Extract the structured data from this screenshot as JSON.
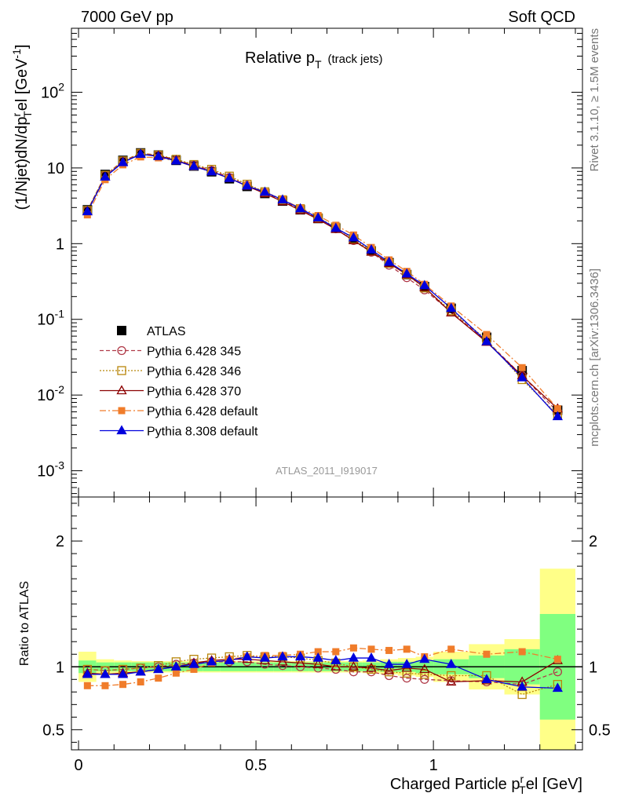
{
  "header": {
    "left": "7000 GeV pp",
    "right": "Soft QCD"
  },
  "side_text": {
    "rivet": "Rivet 3.1.10, ≥ 1.5M events",
    "mcplots": "mcplots.cern.ch [arXiv:1306.3436]"
  },
  "chart_data": {
    "type": "scatter",
    "title": "Relative p",
    "title_sub": "T",
    "title_suffix": "(track jets)",
    "analysis_id": "ATLAS_2011_I919017",
    "ylabel": "(1/Njet)dN/dp",
    "ylabel_sup": "r",
    "ylabel_sub": "T",
    "ylabel_tail": "el [GeV",
    "ylabel_unit_sup": "-1",
    "ylabel_close": "]",
    "ratio_ylabel": "Ratio to ATLAS",
    "xlabel": "Charged Particle p",
    "xlabel_sup": "r",
    "xlabel_sub": "T",
    "xlabel_tail": "el [GeV]",
    "xlim": [
      -0.02,
      1.42
    ],
    "ylim": [
      0.00045,
      700
    ],
    "ratio_ylim": [
      0.34,
      2.35
    ],
    "x_ticks": [
      {
        "v": 0,
        "label": "0"
      },
      {
        "v": 0.5,
        "label": "0.5"
      },
      {
        "v": 1,
        "label": "1"
      }
    ],
    "y_ticks": [
      {
        "v": 0.001,
        "base": "10",
        "exp": "-3"
      },
      {
        "v": 0.01,
        "base": "10",
        "exp": "-2"
      },
      {
        "v": 0.1,
        "base": "10",
        "exp": "-1"
      },
      {
        "v": 1,
        "base": "1",
        "exp": ""
      },
      {
        "v": 10,
        "base": "10",
        "exp": ""
      },
      {
        "v": 100,
        "base": "10",
        "exp": "2"
      }
    ],
    "ratio_ticks": [
      {
        "v": 0.5,
        "label": "0.5"
      },
      {
        "v": 1,
        "label": "1"
      },
      {
        "v": 2,
        "label": "2"
      }
    ],
    "x": [
      0.025,
      0.075,
      0.125,
      0.175,
      0.225,
      0.275,
      0.325,
      0.375,
      0.425,
      0.475,
      0.525,
      0.575,
      0.625,
      0.675,
      0.725,
      0.775,
      0.825,
      0.875,
      0.925,
      0.975,
      1.05,
      1.15,
      1.25,
      1.35
    ],
    "x_edges": [
      0,
      0.05,
      0.1,
      0.15,
      0.2,
      0.25,
      0.3,
      0.35,
      0.4,
      0.45,
      0.5,
      0.55,
      0.6,
      0.65,
      0.7,
      0.75,
      0.8,
      0.85,
      0.9,
      0.95,
      1.0,
      1.1,
      1.2,
      1.3,
      1.4
    ],
    "data": {
      "name": "ATLAS",
      "values": [
        2.8,
        8.2,
        12.6,
        15.8,
        14.8,
        12.6,
        10.6,
        8.9,
        7.2,
        5.7,
        4.6,
        3.65,
        2.8,
        2.15,
        1.6,
        1.15,
        0.8,
        0.56,
        0.39,
        0.27,
        0.14,
        0.058,
        0.021,
        0.0063
      ],
      "band_inner": [
        0.05,
        0.035,
        0.035,
        0.035,
        0.035,
        0.035,
        0.035,
        0.035,
        0.035,
        0.035,
        0.035,
        0.035,
        0.035,
        0.035,
        0.035,
        0.035,
        0.035,
        0.04,
        0.04,
        0.05,
        0.06,
        0.09,
        0.14,
        0.42
      ],
      "band_outer": [
        0.12,
        0.06,
        0.05,
        0.045,
        0.045,
        0.045,
        0.045,
        0.045,
        0.045,
        0.045,
        0.045,
        0.045,
        0.045,
        0.045,
        0.045,
        0.045,
        0.05,
        0.06,
        0.07,
        0.08,
        0.12,
        0.18,
        0.22,
        0.78
      ]
    },
    "series": [
      {
        "name": "Pythia 6.428 345",
        "color": "#b03a48",
        "marker": "circle",
        "dash": "5,3",
        "values": [
          2.75,
          8.0,
          12.4,
          15.6,
          14.8,
          12.8,
          10.9,
          9.3,
          7.5,
          5.9,
          4.7,
          3.7,
          2.8,
          2.15,
          1.57,
          1.1,
          0.77,
          0.52,
          0.355,
          0.245,
          0.125,
          0.052,
          0.018,
          0.006
        ],
        "ratio": [
          0.98,
          0.97,
          0.98,
          0.99,
          1.0,
          1.02,
          1.03,
          1.04,
          1.04,
          1.04,
          1.02,
          1.01,
          1.0,
          0.99,
          0.98,
          0.96,
          0.96,
          0.93,
          0.91,
          0.9,
          0.89,
          0.88,
          0.86,
          0.96
        ]
      },
      {
        "name": "Pythia 6.428 346",
        "color": "#b8860b",
        "marker": "square",
        "dash": "2,2",
        "values": [
          2.75,
          8.0,
          12.4,
          15.6,
          14.8,
          13.0,
          11.1,
          9.6,
          7.8,
          6.1,
          4.85,
          3.8,
          2.9,
          2.2,
          1.65,
          1.15,
          0.8,
          0.55,
          0.39,
          0.26,
          0.13,
          0.054,
          0.016,
          0.0055
        ],
        "ratio": [
          0.98,
          0.97,
          0.98,
          0.99,
          1.01,
          1.04,
          1.06,
          1.07,
          1.08,
          1.09,
          1.08,
          1.08,
          1.07,
          1.05,
          1.03,
          1.0,
          0.98,
          0.96,
          0.95,
          0.94,
          0.93,
          0.93,
          0.78,
          0.86
        ]
      },
      {
        "name": "Pythia 6.428 370",
        "color": "#8b0000",
        "marker": "triangle-open",
        "dash": "",
        "values": [
          2.65,
          7.6,
          12.0,
          15.1,
          14.5,
          12.6,
          10.6,
          9.0,
          7.3,
          5.75,
          4.6,
          3.6,
          2.75,
          2.1,
          1.55,
          1.1,
          0.78,
          0.55,
          0.39,
          0.265,
          0.122,
          0.05,
          0.018,
          0.0066
        ],
        "ratio": [
          0.95,
          0.94,
          0.95,
          0.96,
          0.98,
          1.0,
          1.03,
          1.05,
          1.06,
          1.06,
          1.05,
          1.04,
          1.03,
          1.02,
          1.0,
          1.0,
          0.99,
          0.97,
          0.99,
          0.98,
          0.88,
          0.89,
          0.88,
          1.05
        ]
      },
      {
        "name": "Pythia 6.428 default",
        "color": "#f07c2a",
        "marker": "square-filled",
        "dash": "8,3,2,3",
        "values": [
          2.4,
          7.0,
          11.0,
          14.0,
          13.6,
          12.4,
          10.4,
          8.9,
          7.3,
          5.9,
          4.8,
          3.85,
          2.95,
          2.35,
          1.75,
          1.3,
          0.89,
          0.61,
          0.43,
          0.29,
          0.15,
          0.063,
          0.023,
          0.0066
        ],
        "ratio": [
          0.85,
          0.85,
          0.86,
          0.88,
          0.91,
          0.95,
          0.98,
          1.03,
          1.06,
          1.08,
          1.09,
          1.09,
          1.1,
          1.12,
          1.12,
          1.15,
          1.14,
          1.13,
          1.14,
          1.08,
          1.14,
          1.1,
          1.12,
          1.06
        ]
      },
      {
        "name": "Pythia 8.308 default",
        "color": "#0000dd",
        "marker": "triangle-filled",
        "dash": "",
        "values": [
          2.65,
          7.6,
          11.8,
          15.2,
          14.2,
          12.4,
          10.5,
          8.9,
          7.3,
          5.8,
          4.8,
          3.8,
          2.9,
          2.2,
          1.6,
          1.2,
          0.83,
          0.57,
          0.4,
          0.28,
          0.14,
          0.051,
          0.017,
          0.0052
        ],
        "ratio": [
          0.94,
          0.94,
          0.94,
          0.96,
          0.98,
          1.0,
          1.02,
          1.04,
          1.05,
          1.08,
          1.07,
          1.08,
          1.08,
          1.07,
          1.05,
          1.07,
          1.07,
          1.02,
          1.02,
          1.06,
          1.02,
          0.9,
          0.84,
          0.83
        ]
      }
    ]
  }
}
